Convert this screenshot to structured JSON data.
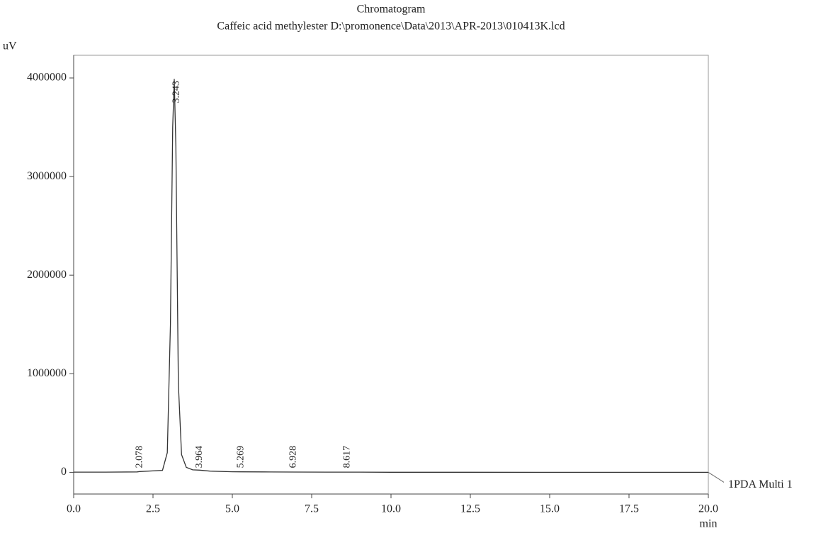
{
  "chart_data": {
    "type": "line",
    "title": "Chromatogram",
    "subtitle": "Caffeic acid methylester D:\\promonence\\Data\\2013\\APR-2013\\010413K.lcd",
    "xlabel": "min",
    "ylabel": "uV",
    "x": [
      0,
      1,
      2,
      2.078,
      2.8,
      2.95,
      3.05,
      3.12,
      3.17,
      3.22,
      3.3,
      3.4,
      3.55,
      3.75,
      3.964,
      4.3,
      5,
      5.269,
      6,
      6.928,
      8,
      8.617,
      10,
      12.5,
      15,
      17.5,
      20
    ],
    "series": [
      {
        "name": "1PDA Multi 1",
        "color": "#333333",
        "values": [
          2000,
          2000,
          4000,
          8000,
          20000,
          200000,
          1500000,
          3500000,
          3990000,
          3300000,
          900000,
          180000,
          50000,
          25000,
          22000,
          12000,
          6000,
          5000,
          4000,
          3000,
          2000,
          2000,
          1000,
          1000,
          0,
          0,
          0
        ]
      }
    ],
    "peaks": [
      2.078,
      3.243,
      3.964,
      5.269,
      6.928,
      8.617
    ],
    "xlim": [
      0,
      20
    ],
    "ylim": [
      -220000,
      4230000
    ],
    "xticks": [
      {
        "value": 0,
        "label": "0.0"
      },
      2.5,
      {
        "value": 5,
        "label": "5.0"
      },
      7.5,
      {
        "value": 10,
        "label": "10.0"
      },
      12.5,
      {
        "value": 15,
        "label": "15.0"
      },
      17.5,
      {
        "value": 20,
        "label": "20.0"
      }
    ],
    "yticks": [
      0,
      1000000,
      2000000,
      3000000,
      4000000
    ]
  }
}
